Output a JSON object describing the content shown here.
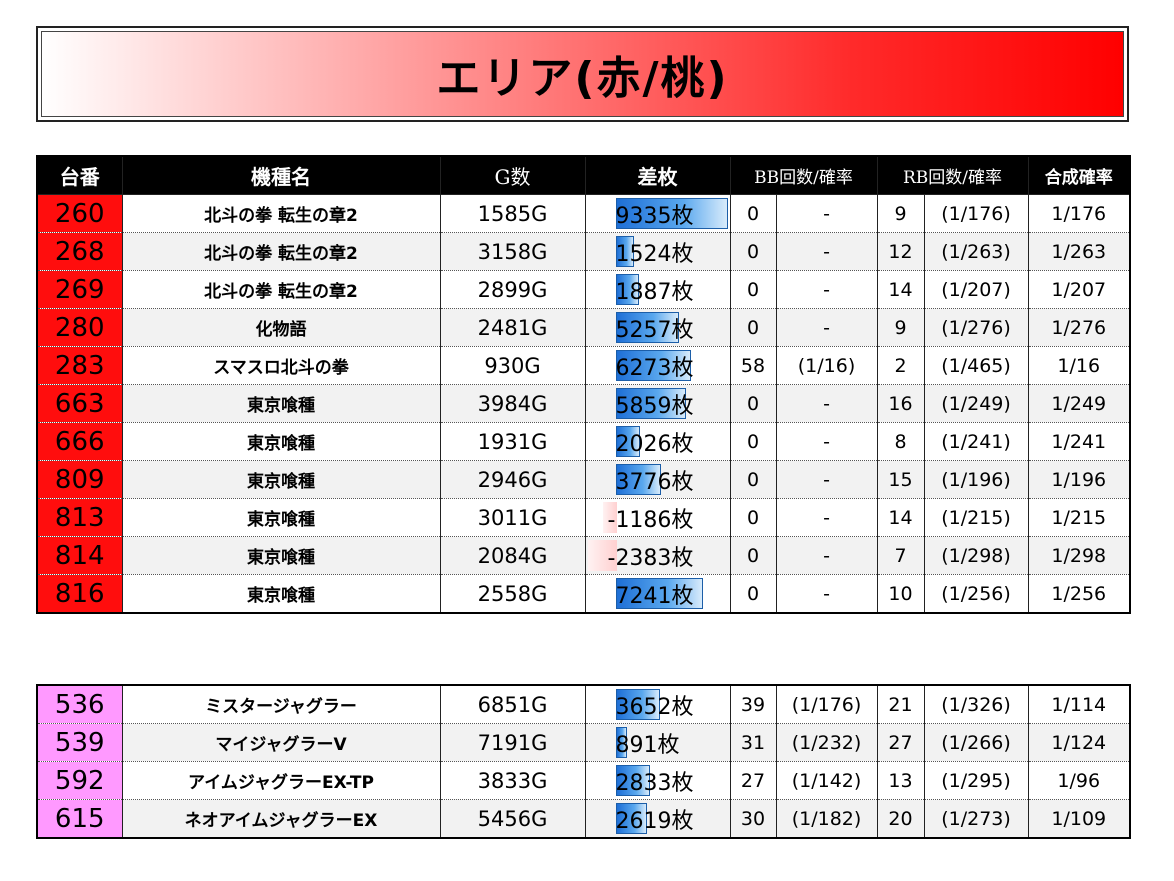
{
  "title": "エリア(赤/桃)",
  "headers": [
    "台番",
    "機種名",
    "G数",
    "差枚",
    "BB回数/確率",
    "RB回数/確率",
    "合成確率"
  ],
  "colors": {
    "red_area": "#ff0d0d",
    "pink_area": "#ff99ff",
    "bar_positive": "#1e6fd6",
    "bar_negative": "#ffd0d0"
  },
  "bar_scale_max": 9335,
  "tables": [
    {
      "area": "red",
      "rows": [
        {
          "num": "260",
          "name": "北斗の拳 転生の章2",
          "g": "1585G",
          "diff": "9335枚",
          "diff_value": 9335,
          "bb": "0",
          "bb_rate": "-",
          "rb": "9",
          "rb_rate": "(1/176)",
          "total": "1/176"
        },
        {
          "num": "268",
          "name": "北斗の拳 転生の章2",
          "g": "3158G",
          "diff": "1524枚",
          "diff_value": 1524,
          "bb": "0",
          "bb_rate": "-",
          "rb": "12",
          "rb_rate": "(1/263)",
          "total": "1/263"
        },
        {
          "num": "269",
          "name": "北斗の拳 転生の章2",
          "g": "2899G",
          "diff": "1887枚",
          "diff_value": 1887,
          "bb": "0",
          "bb_rate": "-",
          "rb": "14",
          "rb_rate": "(1/207)",
          "total": "1/207"
        },
        {
          "num": "280",
          "name": "化物語",
          "g": "2481G",
          "diff": "5257枚",
          "diff_value": 5257,
          "bb": "0",
          "bb_rate": "-",
          "rb": "9",
          "rb_rate": "(1/276)",
          "total": "1/276"
        },
        {
          "num": "283",
          "name": "スマスロ北斗の拳",
          "g": "930G",
          "diff": "6273枚",
          "diff_value": 6273,
          "bb": "58",
          "bb_rate": "(1/16)",
          "rb": "2",
          "rb_rate": "(1/465)",
          "total": "1/16"
        },
        {
          "num": "663",
          "name": "東京喰種",
          "g": "3984G",
          "diff": "5859枚",
          "diff_value": 5859,
          "bb": "0",
          "bb_rate": "-",
          "rb": "16",
          "rb_rate": "(1/249)",
          "total": "1/249"
        },
        {
          "num": "666",
          "name": "東京喰種",
          "g": "1931G",
          "diff": "2026枚",
          "diff_value": 2026,
          "bb": "0",
          "bb_rate": "-",
          "rb": "8",
          "rb_rate": "(1/241)",
          "total": "1/241"
        },
        {
          "num": "809",
          "name": "東京喰種",
          "g": "2946G",
          "diff": "3776枚",
          "diff_value": 3776,
          "bb": "0",
          "bb_rate": "-",
          "rb": "15",
          "rb_rate": "(1/196)",
          "total": "1/196"
        },
        {
          "num": "813",
          "name": "東京喰種",
          "g": "3011G",
          "diff": "-1186枚",
          "diff_value": -1186,
          "bb": "0",
          "bb_rate": "-",
          "rb": "14",
          "rb_rate": "(1/215)",
          "total": "1/215"
        },
        {
          "num": "814",
          "name": "東京喰種",
          "g": "2084G",
          "diff": "-2383枚",
          "diff_value": -2383,
          "bb": "0",
          "bb_rate": "-",
          "rb": "7",
          "rb_rate": "(1/298)",
          "total": "1/298"
        },
        {
          "num": "816",
          "name": "東京喰種",
          "g": "2558G",
          "diff": "7241枚",
          "diff_value": 7241,
          "bb": "0",
          "bb_rate": "-",
          "rb": "10",
          "rb_rate": "(1/256)",
          "total": "1/256"
        }
      ]
    },
    {
      "area": "pink",
      "rows": [
        {
          "num": "536",
          "name": "ミスタージャグラー",
          "g": "6851G",
          "diff": "3652枚",
          "diff_value": 3652,
          "bb": "39",
          "bb_rate": "(1/176)",
          "rb": "21",
          "rb_rate": "(1/326)",
          "total": "1/114"
        },
        {
          "num": "539",
          "name": "マイジャグラーV",
          "g": "7191G",
          "diff": "891枚",
          "diff_value": 891,
          "bb": "31",
          "bb_rate": "(1/232)",
          "rb": "27",
          "rb_rate": "(1/266)",
          "total": "1/124"
        },
        {
          "num": "592",
          "name": "アイムジャグラーEX-TP",
          "g": "3833G",
          "diff": "2833枚",
          "diff_value": 2833,
          "bb": "27",
          "bb_rate": "(1/142)",
          "rb": "13",
          "rb_rate": "(1/295)",
          "total": "1/96"
        },
        {
          "num": "615",
          "name": "ネオアイムジャグラーEX",
          "g": "5456G",
          "diff": "2619枚",
          "diff_value": 2619,
          "bb": "30",
          "bb_rate": "(1/182)",
          "rb": "20",
          "rb_rate": "(1/273)",
          "total": "1/109"
        }
      ]
    }
  ]
}
